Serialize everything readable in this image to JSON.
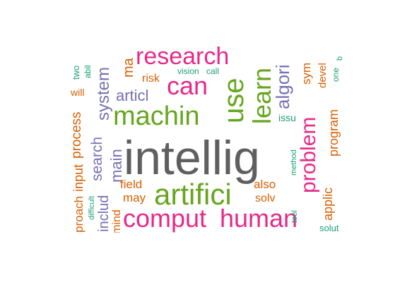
{
  "palette": {
    "gray": "#5f5f5f",
    "green": "#66a61e",
    "pink": "#e7298a",
    "orange": "#d95f02",
    "purple": "#7570b3",
    "teal": "#1b9e77"
  },
  "words": [
    {
      "text": "intellig",
      "color": "gray"
    },
    {
      "text": "artifici",
      "color": "green"
    },
    {
      "text": "machin",
      "color": "green"
    },
    {
      "text": "comput",
      "color": "pink"
    },
    {
      "text": "human",
      "color": "pink"
    },
    {
      "text": "research",
      "color": "pink"
    },
    {
      "text": "can",
      "color": "pink"
    },
    {
      "text": "use",
      "color": "green"
    },
    {
      "text": "learn",
      "color": "green"
    },
    {
      "text": "problem",
      "color": "pink"
    },
    {
      "text": "algori",
      "color": "purple"
    },
    {
      "text": "system",
      "color": "purple"
    },
    {
      "text": "articl",
      "color": "purple"
    },
    {
      "text": "search",
      "color": "purple"
    },
    {
      "text": "main",
      "color": "purple"
    },
    {
      "text": "includ",
      "color": "purple"
    },
    {
      "text": "process",
      "color": "orange"
    },
    {
      "text": "input",
      "color": "orange"
    },
    {
      "text": "proach",
      "color": "orange"
    },
    {
      "text": "program",
      "color": "orange"
    },
    {
      "text": "applic",
      "color": "orange"
    },
    {
      "text": "ma",
      "color": "orange"
    },
    {
      "text": "risk",
      "color": "orange"
    },
    {
      "text": "field",
      "color": "orange"
    },
    {
      "text": "may",
      "color": "orange"
    },
    {
      "text": "also",
      "color": "orange"
    },
    {
      "text": "solv",
      "color": "orange"
    },
    {
      "text": "mind",
      "color": "orange"
    },
    {
      "text": "will",
      "color": "orange"
    },
    {
      "text": "sym",
      "color": "orange"
    },
    {
      "text": "devel",
      "color": "orange"
    },
    {
      "text": "two",
      "color": "teal"
    },
    {
      "text": "abil",
      "color": "teal"
    },
    {
      "text": "vision",
      "color": "teal"
    },
    {
      "text": "call",
      "color": "teal"
    },
    {
      "text": "issu",
      "color": "teal"
    },
    {
      "text": "one",
      "color": "teal"
    },
    {
      "text": "b",
      "color": "teal"
    },
    {
      "text": "difficult",
      "color": "teal"
    },
    {
      "text": "method",
      "color": "teal"
    },
    {
      "text": "tool",
      "color": "teal"
    },
    {
      "text": "solut",
      "color": "teal"
    }
  ]
}
